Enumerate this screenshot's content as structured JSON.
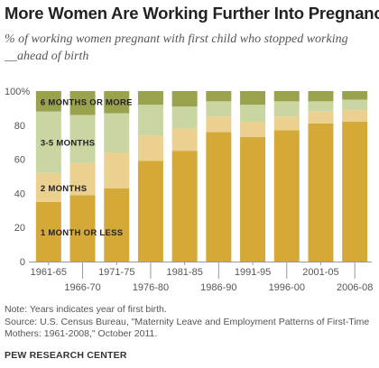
{
  "title": "More Women Are Working Further Into Pregnancy",
  "subtitle": "% of working women pregnant with first child who stopped working __ahead of birth",
  "note": "Note: Years indicates year of first birth.",
  "source": "Source: U.S. Census Bureau, \"Maternity Leave and Employment Patterns of First-Time Mothers: 1961-2008,\" October 2011.",
  "footer": "PEW RESEARCH CENTER",
  "colors": {
    "one_month": "#d4a938",
    "two_months": "#ecd08f",
    "three_five_months": "#c9d6a2",
    "six_months": "#9aa24e",
    "axis": "#999999"
  },
  "chart_data": {
    "type": "bar",
    "stacked": true,
    "categories": [
      "1961-65",
      "1966-70",
      "1971-75",
      "1976-80",
      "1981-85",
      "1986-90",
      "1991-95",
      "1996-00",
      "2001-05",
      "2006-08"
    ],
    "x_tick_labels_top_row": [
      "1961-65",
      "1971-75",
      "1981-85",
      "1991-95",
      "2001-05"
    ],
    "x_tick_labels_bottom_row": [
      "1966-70",
      "1976-80",
      "1986-90",
      "1996-00",
      "2006-08"
    ],
    "yticks": [
      "0",
      "20",
      "40",
      "60",
      "80",
      "100%"
    ],
    "ylim": [
      0,
      100
    ],
    "series": [
      {
        "name": "1 MONTH OR LESS",
        "color_key": "one_month",
        "values": [
          35,
          39,
          43,
          59,
          65,
          76,
          73,
          77,
          81,
          82
        ]
      },
      {
        "name": "2 MONTHS",
        "color_key": "two_months",
        "values": [
          17,
          19,
          21,
          15,
          13,
          9,
          9,
          8,
          7,
          7
        ]
      },
      {
        "name": "3-5 MONTHS",
        "color_key": "three_five_months",
        "values": [
          36,
          28,
          23,
          18,
          13,
          9,
          10,
          9,
          6,
          6
        ]
      },
      {
        "name": "6 MONTHS OR MORE",
        "color_key": "six_months",
        "values": [
          12,
          14,
          13,
          8,
          9,
          6,
          8,
          6,
          6,
          5
        ]
      }
    ],
    "legend": "inline labels inside first bar",
    "grid": false
  }
}
